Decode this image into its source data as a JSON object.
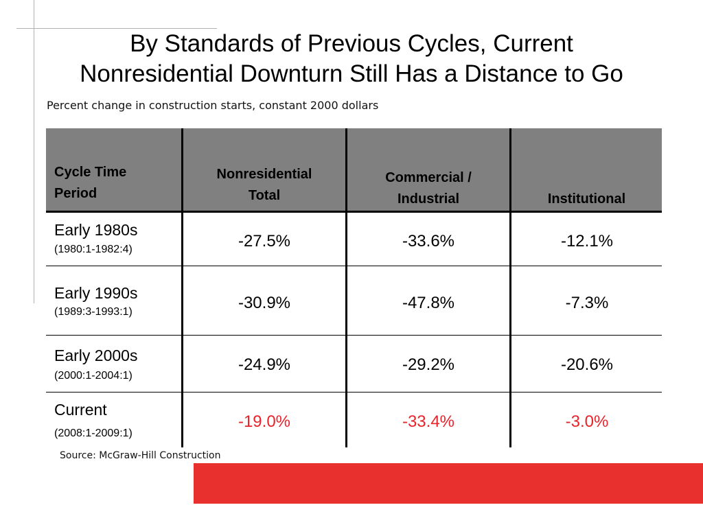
{
  "slide": {
    "title_line1": "By Standards of Previous Cycles, Current",
    "title_line2": "Nonresidential Downturn Still Has a Distance to Go",
    "subtitle": "Percent change in construction starts, constant 2000 dollars",
    "source": "Source: McGraw-Hill Construction",
    "accent_color": "#e8302f"
  },
  "table": {
    "headers": {
      "period_line1": "Cycle Time",
      "period_line2": "Period",
      "nonres_line1": "Nonresidential",
      "nonres_line2": "Total",
      "comm_line1": "Commercial /",
      "comm_line2": "Industrial",
      "inst": "Institutional"
    },
    "rows": [
      {
        "period": "Early 1980s",
        "range": "(1980:1-1982:4)",
        "nonres": "-27.5%",
        "comm": "-33.6%",
        "inst": "-12.1%"
      },
      {
        "period": "Early 1990s",
        "range": "(1989:3-1993:1)",
        "nonres": "-30.9%",
        "comm": "-47.8%",
        "inst": "-7.3%"
      },
      {
        "period": "Early 2000s",
        "range": "(2000:1-2004:1)",
        "nonres": "-24.9%",
        "comm": "-29.2%",
        "inst": "-20.6%"
      },
      {
        "period": "Current",
        "range": "(2008:1-2009:1)",
        "nonres": "-19.0%",
        "comm": "-33.4%",
        "inst": "-3.0%"
      }
    ]
  }
}
